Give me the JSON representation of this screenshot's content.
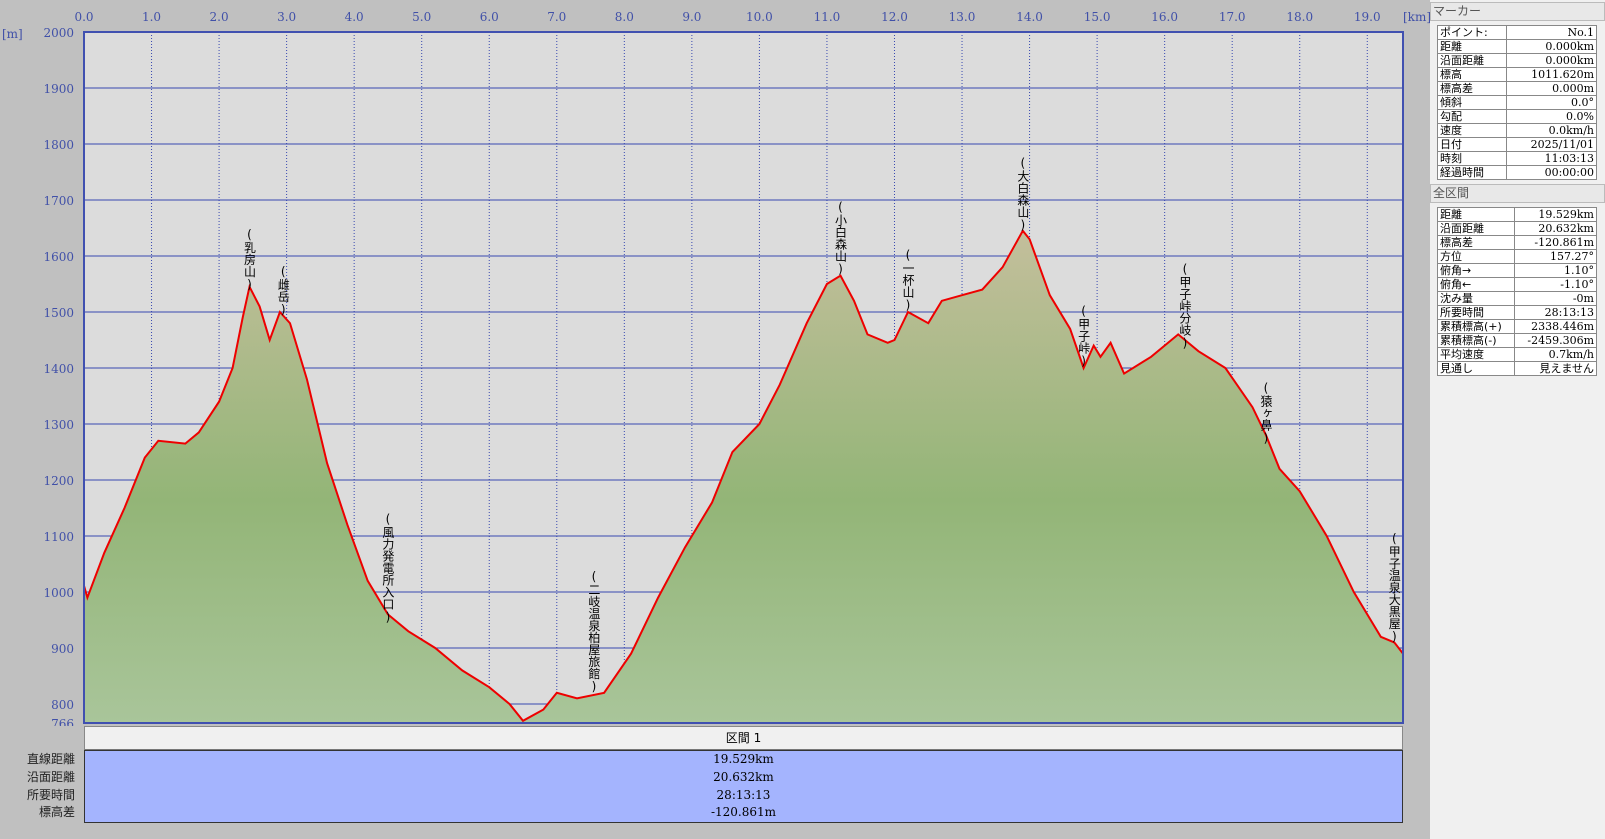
{
  "chart_data": {
    "type": "area",
    "x_unit": "[km]",
    "y_unit": "[m]",
    "xlim": [
      0,
      19.529
    ],
    "ylim": [
      766,
      2000
    ],
    "x_ticks": [
      "0.0",
      "1.0",
      "2.0",
      "3.0",
      "4.0",
      "5.0",
      "6.0",
      "7.0",
      "8.0",
      "9.0",
      "10.0",
      "11.0",
      "12.0",
      "13.0",
      "14.0",
      "15.0",
      "16.0",
      "17.0",
      "18.0",
      "19.0"
    ],
    "y_ticks": [
      "2000",
      "1900",
      "1800",
      "1700",
      "1600",
      "1500",
      "1400",
      "1300",
      "1200",
      "1100",
      "1000",
      "900",
      "800",
      "766"
    ],
    "grid": true,
    "colors": {
      "line": "#ee0000",
      "fill_top": "#c4bf9c",
      "fill_mid": "#93b577",
      "fill_bottom": "#a9c59a",
      "background": "#dcdcdc",
      "grid": "#3848b0"
    },
    "profile": [
      [
        0,
        1011
      ],
      [
        0.05,
        990
      ],
      [
        0.3,
        1070
      ],
      [
        0.6,
        1150
      ],
      [
        0.9,
        1240
      ],
      [
        1.1,
        1270
      ],
      [
        1.5,
        1265
      ],
      [
        1.7,
        1285
      ],
      [
        2.0,
        1340
      ],
      [
        2.2,
        1400
      ],
      [
        2.35,
        1490
      ],
      [
        2.45,
        1545
      ],
      [
        2.6,
        1510
      ],
      [
        2.75,
        1450
      ],
      [
        2.9,
        1500
      ],
      [
        3.05,
        1480
      ],
      [
        3.3,
        1380
      ],
      [
        3.6,
        1230
      ],
      [
        3.9,
        1120
      ],
      [
        4.2,
        1020
      ],
      [
        4.5,
        960
      ],
      [
        4.8,
        930
      ],
      [
        5.2,
        900
      ],
      [
        5.6,
        860
      ],
      [
        6.0,
        830
      ],
      [
        6.3,
        800
      ],
      [
        6.5,
        770
      ],
      [
        6.8,
        790
      ],
      [
        7.0,
        820
      ],
      [
        7.3,
        810
      ],
      [
        7.7,
        820
      ],
      [
        8.1,
        890
      ],
      [
        8.5,
        990
      ],
      [
        8.9,
        1080
      ],
      [
        9.3,
        1160
      ],
      [
        9.6,
        1250
      ],
      [
        10.0,
        1300
      ],
      [
        10.3,
        1370
      ],
      [
        10.7,
        1480
      ],
      [
        11.0,
        1550
      ],
      [
        11.2,
        1565
      ],
      [
        11.4,
        1520
      ],
      [
        11.6,
        1460
      ],
      [
        11.9,
        1445
      ],
      [
        12.0,
        1450
      ],
      [
        12.2,
        1500
      ],
      [
        12.5,
        1480
      ],
      [
        12.7,
        1520
      ],
      [
        13.0,
        1530
      ],
      [
        13.3,
        1540
      ],
      [
        13.6,
        1580
      ],
      [
        13.9,
        1645
      ],
      [
        14.0,
        1630
      ],
      [
        14.3,
        1530
      ],
      [
        14.6,
        1470
      ],
      [
        14.8,
        1400
      ],
      [
        14.95,
        1440
      ],
      [
        15.05,
        1420
      ],
      [
        15.2,
        1445
      ],
      [
        15.4,
        1390
      ],
      [
        15.8,
        1420
      ],
      [
        16.2,
        1460
      ],
      [
        16.5,
        1430
      ],
      [
        16.9,
        1400
      ],
      [
        17.3,
        1330
      ],
      [
        17.5,
        1280
      ],
      [
        17.7,
        1220
      ],
      [
        18.0,
        1180
      ],
      [
        18.4,
        1100
      ],
      [
        18.8,
        1000
      ],
      [
        19.2,
        920
      ],
      [
        19.4,
        910
      ],
      [
        19.529,
        890
      ]
    ],
    "annotations": [
      {
        "text": "(乳房山)",
        "km": 2.45,
        "top_m": 1651
      },
      {
        "text": "(雌岳)",
        "km": 2.95,
        "top_m": 1585
      },
      {
        "text": "(風力発電所入口)",
        "km": 4.5,
        "top_m": 1143
      },
      {
        "text": "(二岐温泉柏屋旅館)",
        "km": 7.55,
        "top_m": 1040
      },
      {
        "text": "(小白森山)",
        "km": 11.2,
        "top_m": 1700
      },
      {
        "text": "(一杯山)",
        "km": 12.2,
        "top_m": 1614
      },
      {
        "text": "(大白森山)",
        "km": 13.9,
        "top_m": 1779
      },
      {
        "text": "(甲子峠)",
        "km": 14.8,
        "top_m": 1514
      },
      {
        "text": "(甲子峠分岐)",
        "km": 16.3,
        "top_m": 1589
      },
      {
        "text": "(猿ヶ鼻)",
        "km": 17.5,
        "top_m": 1377
      },
      {
        "text": "(甲子温泉大黒屋)",
        "km": 19.4,
        "top_m": 1108
      }
    ]
  },
  "segment": {
    "header": "区間 1",
    "rows": [
      {
        "label": "直線距離",
        "value": "19.529km"
      },
      {
        "label": "沿面距離",
        "value": "20.632km"
      },
      {
        "label": "所要時間",
        "value": "28:13:13"
      },
      {
        "label": "標高差",
        "value": "-120.861m"
      }
    ]
  },
  "panel": {
    "marker_title": "マーカー",
    "marker_rows": [
      {
        "label": "ポイント:",
        "value": "No.1"
      },
      {
        "label": "距離",
        "value": "0.000km"
      },
      {
        "label": "沿面距離",
        "value": "0.000km"
      },
      {
        "label": "標高",
        "value": "1011.620m"
      },
      {
        "label": "標高差",
        "value": "0.000m"
      },
      {
        "label": "傾斜",
        "value": "0.0°"
      },
      {
        "label": "勾配",
        "value": "0.0%"
      },
      {
        "label": "速度",
        "value": "0.0km/h"
      },
      {
        "label": "日付",
        "value": "2025/11/01"
      },
      {
        "label": "時刻",
        "value": "11:03:13"
      },
      {
        "label": "経過時間",
        "value": "00:00:00"
      }
    ],
    "total_title": "全区間",
    "total_rows": [
      {
        "label": "距離",
        "value": "19.529km"
      },
      {
        "label": "沿面距離",
        "value": "20.632km"
      },
      {
        "label": "標高差",
        "value": "-120.861m"
      },
      {
        "label": "方位",
        "value": "157.27°"
      },
      {
        "label": "俯角→",
        "value": "1.10°"
      },
      {
        "label": "俯角←",
        "value": "-1.10°"
      },
      {
        "label": "沈み量",
        "value": "-0m"
      },
      {
        "label": "所要時間",
        "value": "28:13:13"
      },
      {
        "label": "累積標高(+)",
        "value": "2338.446m"
      },
      {
        "label": "累積標高(-)",
        "value": "-2459.306m"
      },
      {
        "label": "平均速度",
        "value": "0.7km/h"
      },
      {
        "label": "見通し",
        "value": "見えません"
      }
    ]
  }
}
